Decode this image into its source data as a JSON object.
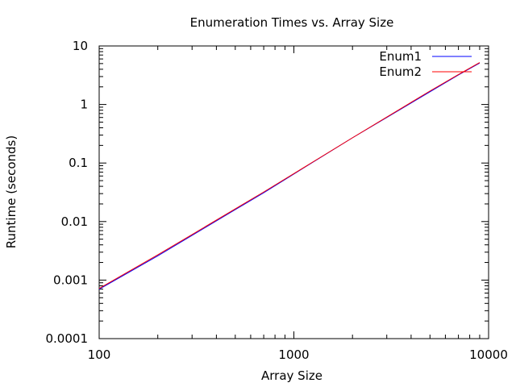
{
  "chart_data": {
    "type": "line",
    "title": "Enumeration Times vs. Array Size",
    "xlabel": "Array Size",
    "ylabel": "Runtime (seconds)",
    "xscale": "log",
    "yscale": "log",
    "xlim": [
      100,
      10000
    ],
    "ylim": [
      0.0001,
      10
    ],
    "xticks": [
      100,
      1000,
      10000
    ],
    "xtick_labels": [
      "100",
      "1000",
      "10000"
    ],
    "yticks": [
      0.0001,
      0.001,
      0.01,
      0.1,
      1,
      10
    ],
    "ytick_labels": [
      "0.0001",
      "0.001",
      "0.01",
      "0.1",
      "1",
      "10"
    ],
    "grid": false,
    "legend_position": "top-right",
    "series": [
      {
        "name": "Enum1",
        "color": "#0000ff",
        "x": [
          100,
          200,
          300,
          500,
          700,
          1000,
          2000,
          3000,
          5000,
          7000,
          9000
        ],
        "y": [
          0.0007,
          0.0026,
          0.0058,
          0.016,
          0.031,
          0.065,
          0.27,
          0.6,
          1.65,
          3.2,
          5.1
        ]
      },
      {
        "name": "Enum2",
        "color": "#ff0000",
        "x": [
          100,
          200,
          300,
          500,
          700,
          1000,
          2000,
          3000,
          5000,
          7000,
          9000
        ],
        "y": [
          0.00072,
          0.0027,
          0.006,
          0.0165,
          0.032,
          0.066,
          0.27,
          0.61,
          1.7,
          3.25,
          5.2
        ]
      }
    ]
  }
}
